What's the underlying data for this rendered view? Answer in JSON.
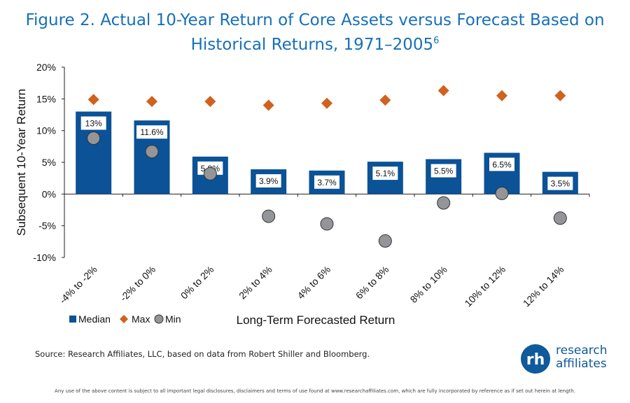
{
  "header": {
    "title_line1": "Figure 2. Actual 10-Year Return of Core Assets versus Forecast Based on",
    "title_line2": "Historical Returns, 1971–2005",
    "title_footnote": "6"
  },
  "footer": {
    "source": "Source: Research Affiliates, LLC, based on data from Robert Shiller and Bloomberg.",
    "disclaimer": "Any use of the above content is subject to all important legal disclosures, disclaimers and terms of use found at www.researchaffiliates.com, which are fully incorporated by reference as if set out herein at length.",
    "logo_line1": "research",
    "logo_line2": "affiliates",
    "logo_mark": "rh"
  },
  "colors": {
    "bar": "#0b5296",
    "max": "#d1611d",
    "min": "#939598",
    "title": "#1670b7"
  },
  "chart_data": {
    "type": "bar",
    "xlabel": "Long-Term Forecasted Return",
    "ylabel": "Subsequent 10-Year Return",
    "ylim": [
      -10,
      20
    ],
    "yticks": [
      -10,
      -5,
      0,
      5,
      10,
      15,
      20
    ],
    "ytick_labels": [
      "-10%",
      "-5%",
      "0%",
      "5%",
      "10%",
      "15%",
      "20%"
    ],
    "categories": [
      "-4% to -2%",
      "-2% to 0%",
      "0% to 2%",
      "2% to 4%",
      "4% to 6%",
      "6% to 8%",
      "8% to 10%",
      "10% to 12%",
      "12% to 14%"
    ],
    "series": [
      {
        "name": "Median",
        "kind": "bar",
        "values": [
          13,
          11.6,
          5.9,
          3.9,
          3.7,
          5.1,
          5.5,
          6.5,
          3.5
        ],
        "labels": [
          "13%",
          "11.6%",
          "5.9%",
          "3.9%",
          "3.7%",
          "5.1%",
          "5.5%",
          "6.5%",
          "3.5%"
        ]
      },
      {
        "name": "Max",
        "kind": "diamond",
        "values": [
          14.9,
          14.6,
          14.6,
          14.0,
          14.3,
          14.8,
          16.3,
          15.5,
          15.5
        ]
      },
      {
        "name": "Min",
        "kind": "circle",
        "values": [
          8.8,
          6.7,
          3.2,
          -3.5,
          -4.7,
          -7.4,
          -1.4,
          0.1,
          -3.8
        ]
      }
    ],
    "legend": [
      "Median",
      "Max",
      "Min"
    ],
    "legend_position": "bottom-left"
  }
}
